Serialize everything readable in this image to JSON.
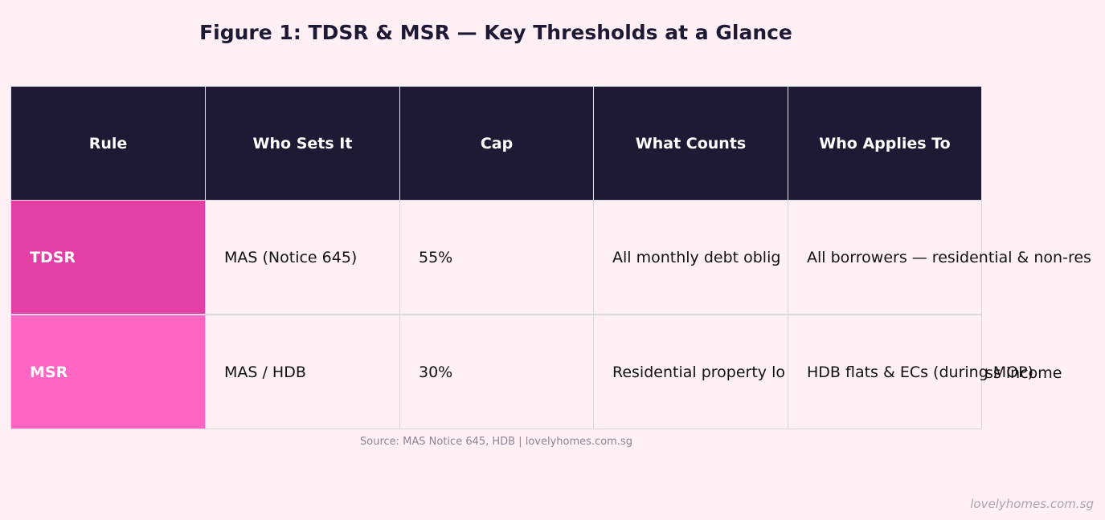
{
  "title": "Figure 1: TDSR & MSR — Key Thresholds at a Glance",
  "table": {
    "headers": [
      "Rule",
      "Who Sets It",
      "Cap",
      "What Counts",
      "Who Applies To"
    ],
    "rows": [
      {
        "rule": "TDSR",
        "who_sets_it": "MAS (Notice 645)",
        "cap": "55%",
        "what_counts": "All monthly debt oblig",
        "who_applies_to": "All borrowers — residential & non-res"
      },
      {
        "rule": "MSR",
        "who_sets_it": "MAS / HDB",
        "cap": "30%",
        "what_counts": "Residential property lo",
        "who_applies_to": "HDB flats & ECs (during MOP)"
      }
    ],
    "overflow_fragment": "ss income"
  },
  "source": "Source: MAS Notice 645, HDB | lovelyhomes.com.sg",
  "watermark": "lovelyhomes.com.sg",
  "colors": {
    "background": "#fff0f6",
    "header_bg": "#1e1a36",
    "tdsr_bg": "#e43fa6",
    "msr_bg": "#ff66c4"
  }
}
